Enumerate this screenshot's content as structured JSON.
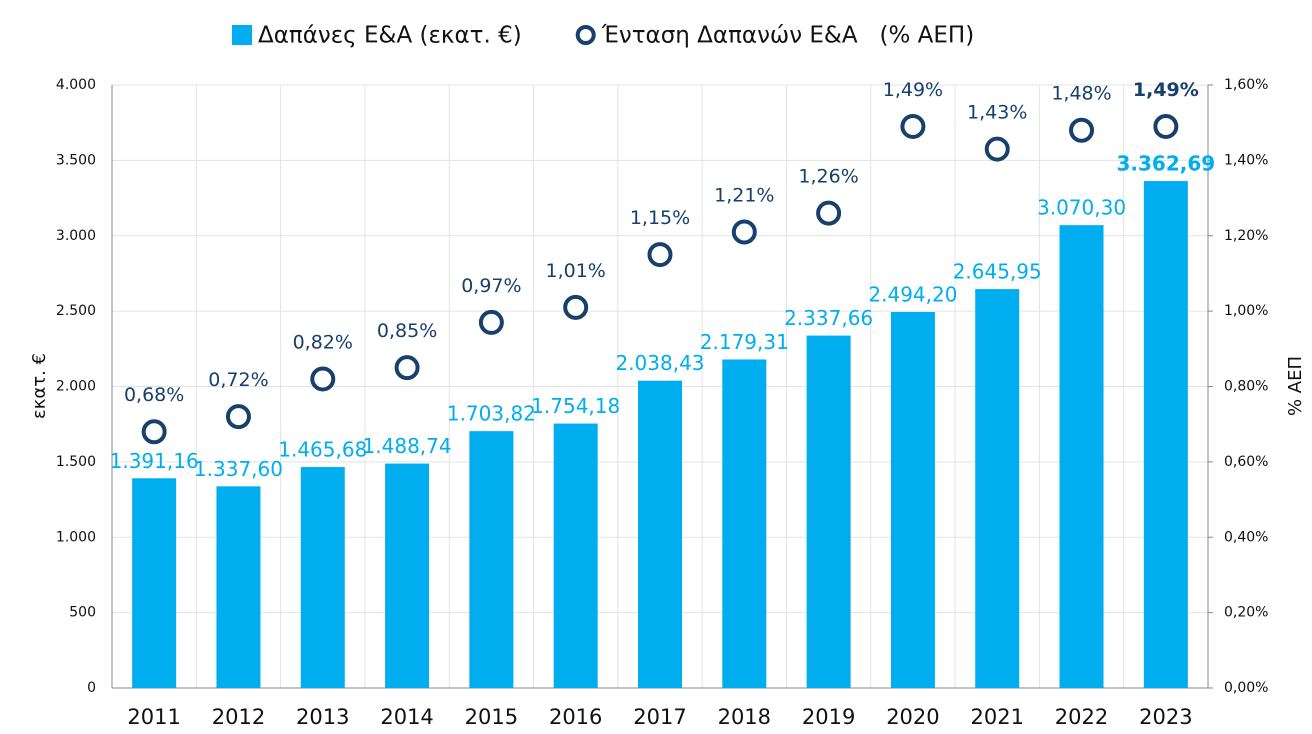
{
  "chart_data": {
    "type": "bar",
    "categories": [
      "2011",
      "2012",
      "2013",
      "2014",
      "2015",
      "2016",
      "2017",
      "2018",
      "2019",
      "2020",
      "2021",
      "2022",
      "2023"
    ],
    "series": [
      {
        "name": "Δαπάνες Ε&Α (εκατ. €)",
        "type": "bar",
        "color": "#00aeef",
        "values": [
          1391.16,
          1337.6,
          1465.68,
          1488.74,
          1703.82,
          1754.18,
          2038.43,
          2179.31,
          2337.66,
          2494.2,
          2645.95,
          3070.3,
          3362.69
        ],
        "value_labels": [
          "1.391,16",
          "1.337,60",
          "1.465,68",
          "1.488,74",
          "1.703,82",
          "1.754,18",
          "2.038,43",
          "2.179,31",
          "2.337,66",
          "2.494,20",
          "2.645,95",
          "3.070,30",
          "3.362,69"
        ]
      },
      {
        "name": "Ένταση Δαπανών Ε&Α   (% ΑΕΠ)",
        "type": "scatter",
        "axis": "y2",
        "color": "#17406d",
        "values": [
          0.68,
          0.72,
          0.82,
          0.85,
          0.97,
          1.01,
          1.15,
          1.21,
          1.26,
          1.49,
          1.43,
          1.48,
          1.49
        ],
        "value_labels": [
          "0,68%",
          "0,72%",
          "0,82%",
          "0,85%",
          "0,97%",
          "1,01%",
          "1,15%",
          "1,21%",
          "1,26%",
          "1,49%",
          "1,43%",
          "1,48%",
          "1,49%"
        ]
      }
    ],
    "y_label": "εκατ. €",
    "y2_label": "% ΑΕΠ",
    "ylim": [
      0,
      4000
    ],
    "yticks": [
      0,
      500,
      {
        "value": 1000,
        "label": "1.000"
      },
      {
        "value": 1500,
        "label": "1.500"
      },
      {
        "value": 2000,
        "label": "2.000"
      },
      {
        "value": 2500,
        "label": "2.500"
      },
      {
        "value": 3000,
        "label": "3.000"
      },
      {
        "value": 3500,
        "label": "3.500"
      },
      {
        "value": 4000,
        "label": "4.000"
      }
    ],
    "y2lim": [
      0,
      1.6
    ],
    "y2ticks": [
      {
        "value": 0,
        "label": "0,00%"
      },
      {
        "value": 0.2,
        "label": "0,20%"
      },
      {
        "value": 0.4,
        "label": "0,40%"
      },
      {
        "value": 0.6,
        "label": "0,60%"
      },
      {
        "value": 0.8,
        "label": "0,80%"
      },
      {
        "value": 1.0,
        "label": "1,00%"
      },
      {
        "value": 1.2,
        "label": "1,20%"
      },
      {
        "value": 1.4,
        "label": "1,40%"
      },
      {
        "value": 1.6,
        "label": "1,60%"
      }
    ],
    "grid": true,
    "legend": "top"
  }
}
